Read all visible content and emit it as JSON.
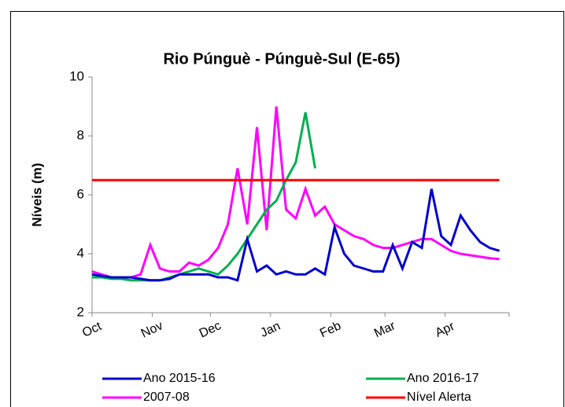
{
  "chart_data": {
    "type": "line",
    "title": "Rio Púnguè - Púnguè-Sul (E-65)",
    "y_label": "Níveis (m)",
    "xlim": [
      0,
      215
    ],
    "ylim": [
      2,
      10
    ],
    "yticks": [
      2,
      4,
      6,
      8,
      10
    ],
    "xticks": [
      {
        "value": 0,
        "label": "Oct"
      },
      {
        "value": 31,
        "label": "Nov"
      },
      {
        "value": 61,
        "label": "Dec"
      },
      {
        "value": 92,
        "label": "Jan"
      },
      {
        "value": 123,
        "label": "Feb"
      },
      {
        "value": 151,
        "label": "Mar"
      },
      {
        "value": 182,
        "label": "Apr"
      }
    ],
    "x": [
      0,
      5,
      10,
      15,
      20,
      25,
      30,
      35,
      40,
      45,
      50,
      55,
      60,
      65,
      70,
      75,
      80,
      85,
      90,
      95,
      100,
      105,
      110,
      115,
      120,
      125,
      130,
      135,
      140,
      145,
      150,
      155,
      160,
      165,
      170,
      175,
      180,
      185,
      190,
      195,
      200,
      205,
      210
    ],
    "series": [
      {
        "name": "Ano 2015-16",
        "color": "#0000cc",
        "values": [
          3.3,
          3.25,
          3.2,
          3.2,
          3.2,
          3.15,
          3.1,
          3.1,
          3.15,
          3.3,
          3.3,
          3.3,
          3.3,
          3.2,
          3.2,
          3.1,
          4.5,
          3.4,
          3.6,
          3.3,
          3.4,
          3.3,
          3.3,
          3.5,
          3.3,
          4.9,
          4.0,
          3.6,
          3.5,
          3.4,
          3.4,
          4.3,
          3.5,
          4.4,
          4.2,
          6.2,
          4.6,
          4.3,
          5.3,
          4.8,
          4.4,
          4.2,
          4.1
        ]
      },
      {
        "name": "Ano 2016-17",
        "color": "#00b050",
        "values": [
          3.2,
          3.2,
          3.15,
          3.15,
          3.1,
          3.1,
          3.1,
          3.1,
          3.2,
          3.3,
          3.4,
          3.5,
          3.4,
          3.3,
          3.6,
          4.0,
          4.5,
          5.0,
          5.5,
          5.8,
          6.5,
          7.1,
          8.8,
          6.9,
          null,
          null,
          null,
          null,
          null,
          null,
          null,
          null,
          null,
          null,
          null,
          null,
          null,
          null,
          null,
          null,
          null,
          null,
          null
        ]
      },
      {
        "name": "2007-08",
        "color": "#ff00ff",
        "values": [
          3.4,
          3.3,
          3.2,
          3.2,
          3.2,
          3.3,
          4.3,
          3.5,
          3.4,
          3.4,
          3.7,
          3.6,
          3.8,
          4.2,
          5.0,
          6.9,
          5.0,
          8.3,
          4.8,
          9.0,
          5.5,
          5.2,
          6.2,
          5.3,
          5.6,
          5.0,
          4.8,
          4.6,
          4.5,
          4.3,
          4.2,
          4.2,
          4.3,
          4.4,
          4.5,
          4.5,
          4.3,
          4.1,
          4.0,
          3.95,
          3.9,
          3.85,
          3.82
        ]
      },
      {
        "name": "Nível Alerta",
        "color": "#ff0000",
        "values": [
          6.5,
          6.5,
          6.5,
          6.5,
          6.5,
          6.5,
          6.5,
          6.5,
          6.5,
          6.5,
          6.5,
          6.5,
          6.5,
          6.5,
          6.5,
          6.5,
          6.5,
          6.5,
          6.5,
          6.5,
          6.5,
          6.5,
          6.5,
          6.5,
          6.5,
          6.5,
          6.5,
          6.5,
          6.5,
          6.5,
          6.5,
          6.5,
          6.5,
          6.5,
          6.5,
          6.5,
          6.5,
          6.5,
          6.5,
          6.5,
          6.5,
          6.5,
          6.5
        ]
      }
    ]
  }
}
